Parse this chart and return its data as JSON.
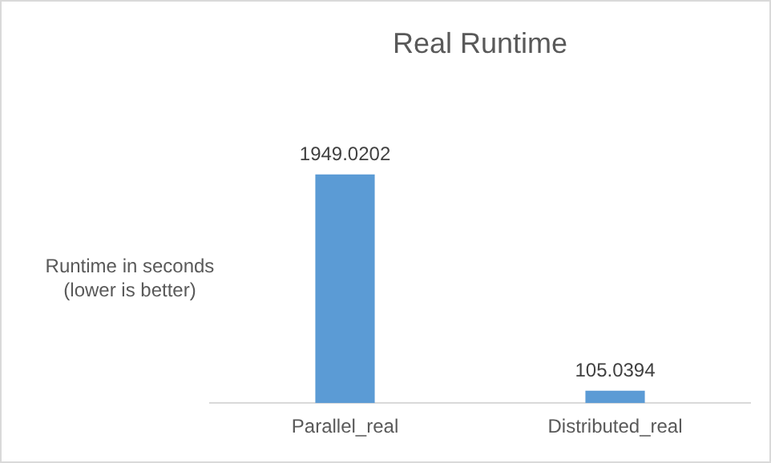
{
  "chart_data": {
    "type": "bar",
    "title": "Real Runtime",
    "ylabel": "Runtime in seconds (lower is better)",
    "categories": [
      "Parallel_real",
      "Distributed_real"
    ],
    "values": [
      1949.0202,
      105.0394
    ],
    "color": "#5b9bd5",
    "data_labels": true,
    "grid": false,
    "legend": false
  }
}
